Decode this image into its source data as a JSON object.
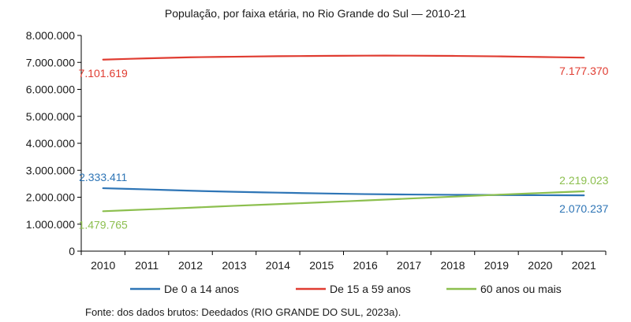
{
  "chart_data": {
    "type": "line",
    "title": "População, por faixa etária, no Rio Grande do Sul — 2010-21",
    "xlabel": "",
    "ylabel": "",
    "x": [
      "2010",
      "2011",
      "2012",
      "2013",
      "2014",
      "2015",
      "2016",
      "2017",
      "2018",
      "2019",
      "2020",
      "2021"
    ],
    "ylim": [
      0,
      8000000
    ],
    "yticks": [
      0,
      1000000,
      2000000,
      3000000,
      4000000,
      5000000,
      6000000,
      7000000,
      8000000
    ],
    "ytick_labels": [
      "0",
      "1.000.000",
      "2.000.000",
      "3.000.000",
      "4.000.000",
      "5.000.000",
      "6.000.000",
      "7.000.000",
      "8.000.000"
    ],
    "grid": false,
    "legend_position": "bottom",
    "series": [
      {
        "name": "De 0 a 14 anos",
        "color": "#2e75b6",
        "values": [
          2333411,
          2290000,
          2240000,
          2200000,
          2170000,
          2140000,
          2115000,
          2100000,
          2090000,
          2080000,
          2075000,
          2070237
        ],
        "labels": [
          {
            "index": 0,
            "text": "2.333.411",
            "pos": "above"
          },
          {
            "index": 11,
            "text": "2.070.237",
            "pos": "below"
          }
        ]
      },
      {
        "name": "De 15 a 59 anos",
        "color": "#e03c31",
        "values": [
          7101619,
          7150000,
          7190000,
          7210000,
          7230000,
          7240000,
          7250000,
          7250000,
          7240000,
          7225000,
          7200000,
          7177370
        ],
        "labels": [
          {
            "index": 0,
            "text": "7.101.619",
            "pos": "below"
          },
          {
            "index": 11,
            "text": "7.177.370",
            "pos": "below"
          }
        ]
      },
      {
        "name": "60 anos ou mais",
        "color": "#8cbf4e",
        "values": [
          1479765,
          1545000,
          1610000,
          1680000,
          1745000,
          1810000,
          1880000,
          1950000,
          2020000,
          2090000,
          2155000,
          2219023
        ],
        "labels": [
          {
            "index": 0,
            "text": "1.479.765",
            "pos": "below"
          },
          {
            "index": 11,
            "text": "2.219.023",
            "pos": "above"
          }
        ]
      }
    ]
  },
  "source": "Fonte: dos dados brutos: Deedados (RIO GRANDE DO SUL, 2023a)."
}
